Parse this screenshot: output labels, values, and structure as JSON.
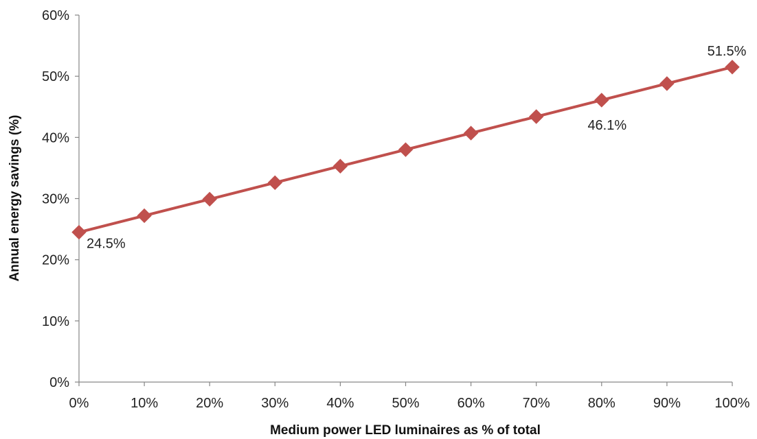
{
  "chart_data": {
    "type": "line",
    "title": "",
    "xlabel": "Medium power LED luminaires as % of total",
    "ylabel": "Annual energy savings (%)",
    "x": [
      0,
      10,
      20,
      30,
      40,
      50,
      60,
      70,
      80,
      90,
      100
    ],
    "x_tick_labels": [
      "0%",
      "10%",
      "20%",
      "30%",
      "40%",
      "50%",
      "60%",
      "70%",
      "80%",
      "90%",
      "100%"
    ],
    "xlim": [
      0,
      100
    ],
    "ylim": [
      0,
      60
    ],
    "y_ticks": [
      0,
      10,
      20,
      30,
      40,
      50,
      60
    ],
    "y_tick_labels": [
      "0%",
      "10%",
      "20%",
      "30%",
      "40%",
      "50%",
      "60%"
    ],
    "series": [
      {
        "values": [
          24.5,
          27.2,
          29.9,
          32.6,
          35.3,
          38.0,
          40.7,
          43.4,
          46.1,
          48.8,
          51.5
        ],
        "color": "#c0504d",
        "marker": "diamond"
      }
    ],
    "data_labels": [
      {
        "index": 0,
        "text": "24.5%",
        "position": "below-right"
      },
      {
        "index": 8,
        "text": "46.1%",
        "position": "below"
      },
      {
        "index": 10,
        "text": "51.5%",
        "position": "above"
      }
    ],
    "grid": false,
    "legend": "none"
  }
}
